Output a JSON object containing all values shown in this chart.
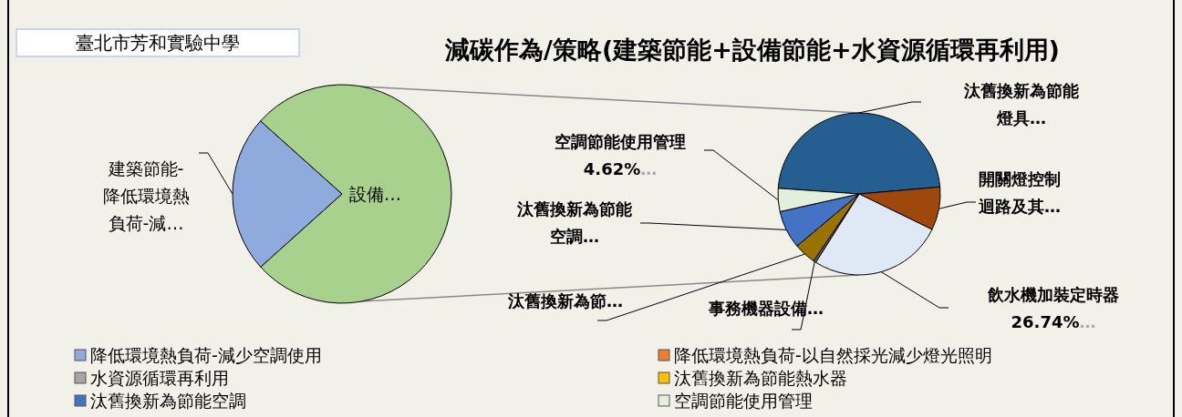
{
  "chart_data": [
    {
      "type": "pie",
      "title": "減碳作為/策略(建築節能+設備節能+水資源循環再利用)",
      "annotations": [
        "臺北市芳和實驗中學"
      ],
      "categories": [
        "建築節能-降低環境熱負荷-減…",
        "設備…"
      ],
      "values": [
        23.3,
        76.7
      ],
      "colors": [
        "#8faadc",
        "#a9d18e"
      ]
    },
    {
      "type": "pie",
      "categories": [
        "汰舊換新為節能燈具…",
        "開關燈控制迴路及其…",
        "飲水機加裝定時器",
        "事務機器設備…",
        "汰舊換新為節…",
        "汰舊換新為節能空調…",
        "空調節能使用管理"
      ],
      "values": [
        47.5,
        8.6,
        26.74,
        0.5,
        4.4,
        7.6,
        4.62
      ],
      "colors": [
        "#255e91",
        "#9e480e",
        "#dfe8f5",
        "#636363",
        "#997300",
        "#4472c4",
        "#e2efda"
      ],
      "value_labels": [
        null,
        null,
        "26.74%…",
        null,
        null,
        null,
        "4.62%…"
      ]
    },
    {
      "type": "other",
      "categories": [
        "降低環境熱負荷-減少空調使用",
        "降低環境熱負荷-以自然採光減少燈光照明",
        "水資源循環再利用",
        "汰舊換新為節能熱水器",
        "汰舊換新為節能空調",
        "空調節能使用管理"
      ],
      "colors": [
        "#8faadc",
        "#ed7d31",
        "#a5a5a5",
        "#ffc000",
        "#4472c4",
        "#e2efda"
      ]
    }
  ]
}
